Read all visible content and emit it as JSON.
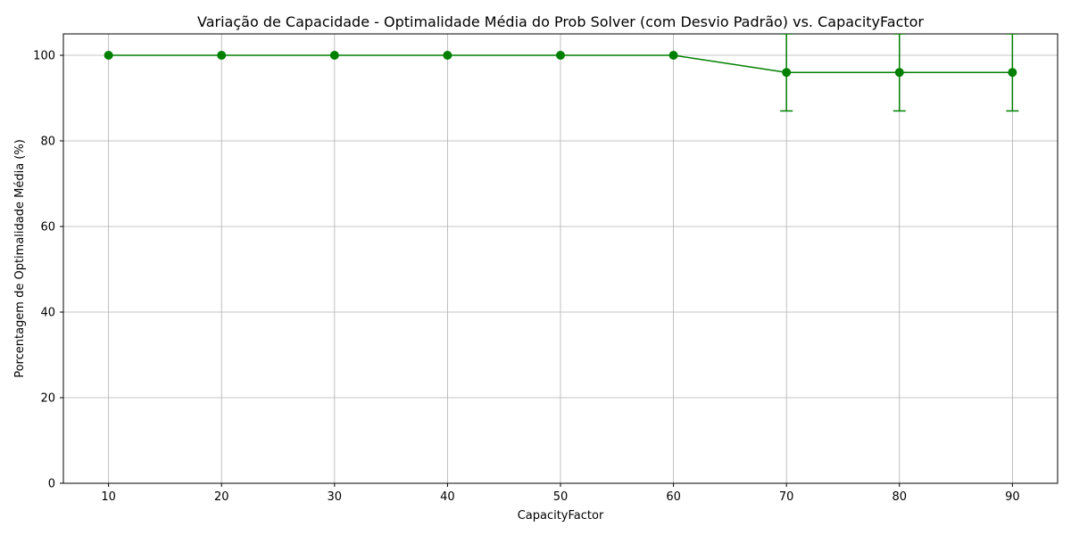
{
  "colors": {
    "series": "#008000",
    "grid": "#b0b0b0",
    "axis": "#000000",
    "background": "#ffffff"
  },
  "chart_data": {
    "type": "line",
    "title": "Variação de Capacidade - Optimalidade Média do Prob Solver (com Desvio Padrão) vs. CapacityFactor",
    "xlabel": "CapacityFactor",
    "ylabel": "Porcentagem de Optimalidade Média (%)",
    "x": [
      10,
      20,
      30,
      40,
      50,
      60,
      70,
      80,
      90
    ],
    "series": [
      {
        "values": [
          100,
          100,
          100,
          100,
          100,
          100,
          96,
          96,
          96
        ],
        "error": [
          0,
          0,
          0,
          0,
          0,
          0,
          9,
          9,
          9
        ],
        "color": "#008000",
        "marker": "circle"
      }
    ],
    "xticks": [
      10,
      20,
      30,
      40,
      50,
      60,
      70,
      80,
      90
    ],
    "yticks": [
      0,
      20,
      40,
      60,
      80,
      100
    ],
    "xticklabels": [
      "10",
      "20",
      "30",
      "40",
      "50",
      "60",
      "70",
      "80",
      "90"
    ],
    "yticklabels": [
      "0",
      "20",
      "40",
      "60",
      "80",
      "100"
    ],
    "xlim": [
      6,
      94
    ],
    "ylim": [
      0,
      105
    ],
    "grid": true,
    "legend": null
  }
}
